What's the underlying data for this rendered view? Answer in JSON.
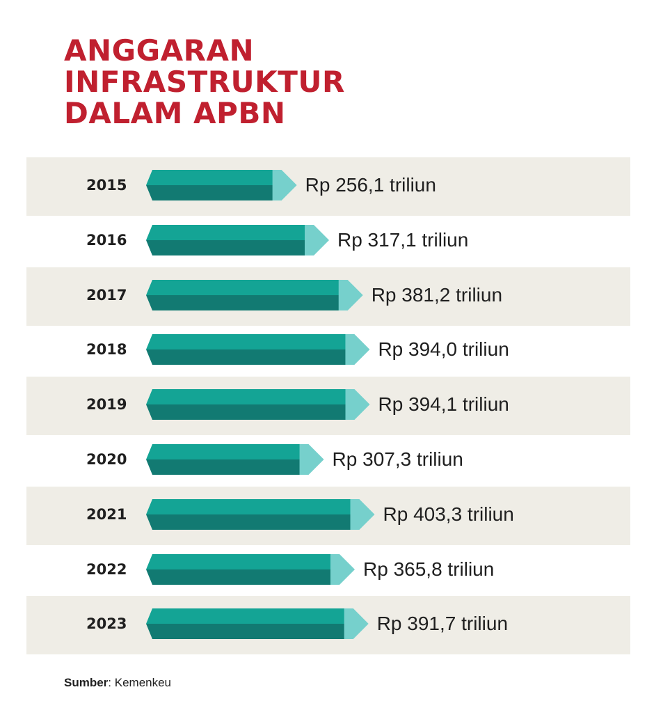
{
  "title_lines": [
    "ANGGARAN",
    "INFRASTRUKTUR",
    "DALAM APBN"
  ],
  "source": {
    "label": "Sumber",
    "text": ": Kemenkeu"
  },
  "colors": {
    "title": "#c0202f",
    "band": "#efede6",
    "bar_top": "#14a495",
    "bar_bottom": "#127a72",
    "bar_tip": "#76d0cc"
  },
  "chart_data": {
    "type": "bar",
    "orientation": "horizontal",
    "categories": [
      "2015",
      "2016",
      "2017",
      "2018",
      "2019",
      "2020",
      "2021",
      "2022",
      "2023"
    ],
    "values": [
      256.1,
      317.1,
      381.2,
      394.0,
      394.1,
      307.3,
      403.3,
      365.8,
      391.7
    ],
    "value_labels": [
      "Rp 256,1 triliun",
      "Rp 317,1 triliun",
      "Rp 381,2 triliun",
      "Rp 394,0 triliun",
      "Rp 394,1 triliun",
      "Rp 307,3 triliun",
      "Rp 403,3 triliun",
      "Rp 365,8 triliun",
      "Rp 391,7 triliun"
    ],
    "unit": "Rp triliun",
    "grid": false,
    "legend": "none"
  }
}
